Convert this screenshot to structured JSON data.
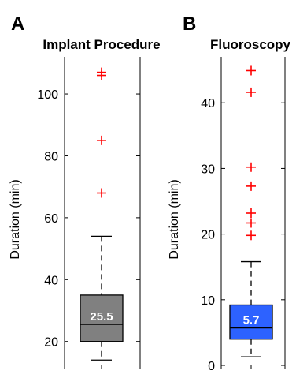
{
  "chart_data": [
    {
      "type": "boxplot",
      "panel_letter": "A",
      "title": "Implant Procedure",
      "ylabel": "Duration (min)",
      "ylim": [
        11,
        112
      ],
      "yticks": [
        20,
        40,
        60,
        80,
        100
      ],
      "box": {
        "whisker_low": 14,
        "q1": 20,
        "median": 25.5,
        "q3": 35,
        "whisker_high": 54,
        "color": "#808080"
      },
      "median_label": "25.5",
      "outliers": [
        68,
        85,
        106,
        107
      ],
      "outlier_color": "#ff0000"
    },
    {
      "type": "boxplot",
      "panel_letter": "B",
      "title": "Fluoroscopy",
      "ylabel": "Duration (min)",
      "ylim": [
        -0.6,
        47
      ],
      "yticks": [
        0,
        10,
        20,
        30,
        40
      ],
      "box": {
        "whisker_low": 1.3,
        "q1": 4,
        "median": 5.7,
        "q3": 9.2,
        "whisker_high": 15.8,
        "color": "#2d62ff"
      },
      "median_label": "5.7",
      "outliers": [
        19.8,
        21.7,
        23.2,
        27.3,
        30.2,
        41.6,
        44.9
      ],
      "outlier_color": "#ff0000"
    }
  ]
}
